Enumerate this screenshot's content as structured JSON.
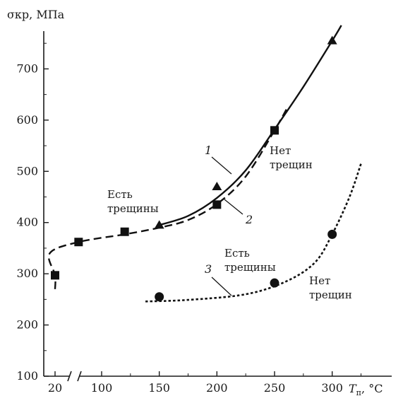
{
  "chart_data": {
    "type": "scatter",
    "ylabel": "σкр, МПа",
    "xlabel": "Tп, °C",
    "xlabel_main": "T",
    "xlabel_sub": "п",
    "xlabel_unit": ", °C",
    "ylim": [
      100,
      760
    ],
    "y_ticks": [
      100,
      200,
      300,
      400,
      500,
      600,
      700
    ],
    "x_ticks": [
      "20",
      "100",
      "150",
      "200",
      "250",
      "300"
    ],
    "x_axis_break": "between 20 and ~75",
    "grid": false,
    "series": [
      {
        "name": "1",
        "marker": "triangle",
        "line": "solid",
        "points": [
          [
            150,
            395
          ],
          [
            200,
            470
          ],
          [
            300,
            755
          ]
        ]
      },
      {
        "name": "2",
        "marker": "square",
        "line": "dashed",
        "points": [
          [
            20,
            297
          ],
          [
            80,
            362
          ],
          [
            120,
            382
          ],
          [
            200,
            435
          ],
          [
            250,
            580
          ]
        ]
      },
      {
        "name": "3",
        "marker": "circle",
        "line": "dotted",
        "points": [
          [
            150,
            255
          ],
          [
            250,
            282
          ],
          [
            300,
            377
          ]
        ]
      }
    ],
    "annotations": [
      {
        "text": [
          "Есть",
          "трещины"
        ]
      },
      {
        "text": [
          "Нет",
          "трещин"
        ]
      },
      {
        "text": [
          "Есть",
          "трещины"
        ]
      },
      {
        "text": [
          "Нет",
          "трещин"
        ]
      }
    ]
  }
}
